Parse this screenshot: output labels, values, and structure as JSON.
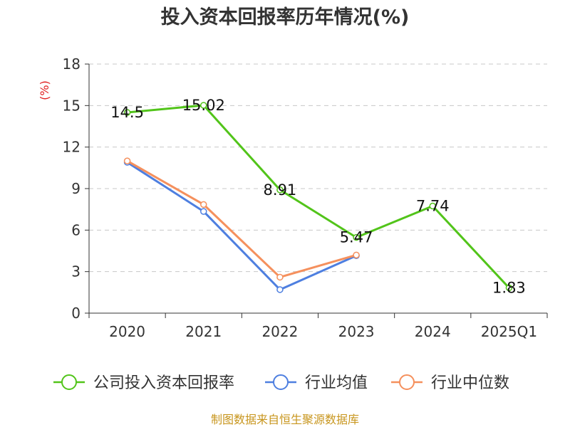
{
  "chart_data": {
    "type": "line",
    "title": "投入资本回报率历年情况(%)",
    "ylabel": "(%)",
    "xlabel": "",
    "categories": [
      "2020",
      "2021",
      "2022",
      "2023",
      "2024",
      "2025Q1"
    ],
    "ylim": [
      0,
      18
    ],
    "yticks": [
      0,
      3,
      6,
      9,
      12,
      15,
      18
    ],
    "grid": true,
    "legend_position": "bottom",
    "series": [
      {
        "name": "公司投入资本回报率",
        "color": "#52c41a",
        "values": [
          14.5,
          15.02,
          8.91,
          5.47,
          7.74,
          1.83
        ],
        "labels": [
          "14.5",
          "15.02",
          "8.91",
          "5.47",
          "7.74",
          "1.83"
        ]
      },
      {
        "name": "行业均值",
        "color": "#4e7fe0",
        "values": [
          10.9,
          7.35,
          1.7,
          4.15,
          null,
          null
        ]
      },
      {
        "name": "行业中位数",
        "color": "#f5905d",
        "values": [
          11.0,
          7.85,
          2.6,
          4.2,
          null,
          null
        ]
      }
    ]
  },
  "source": "制图数据来自恒生聚源数据库"
}
